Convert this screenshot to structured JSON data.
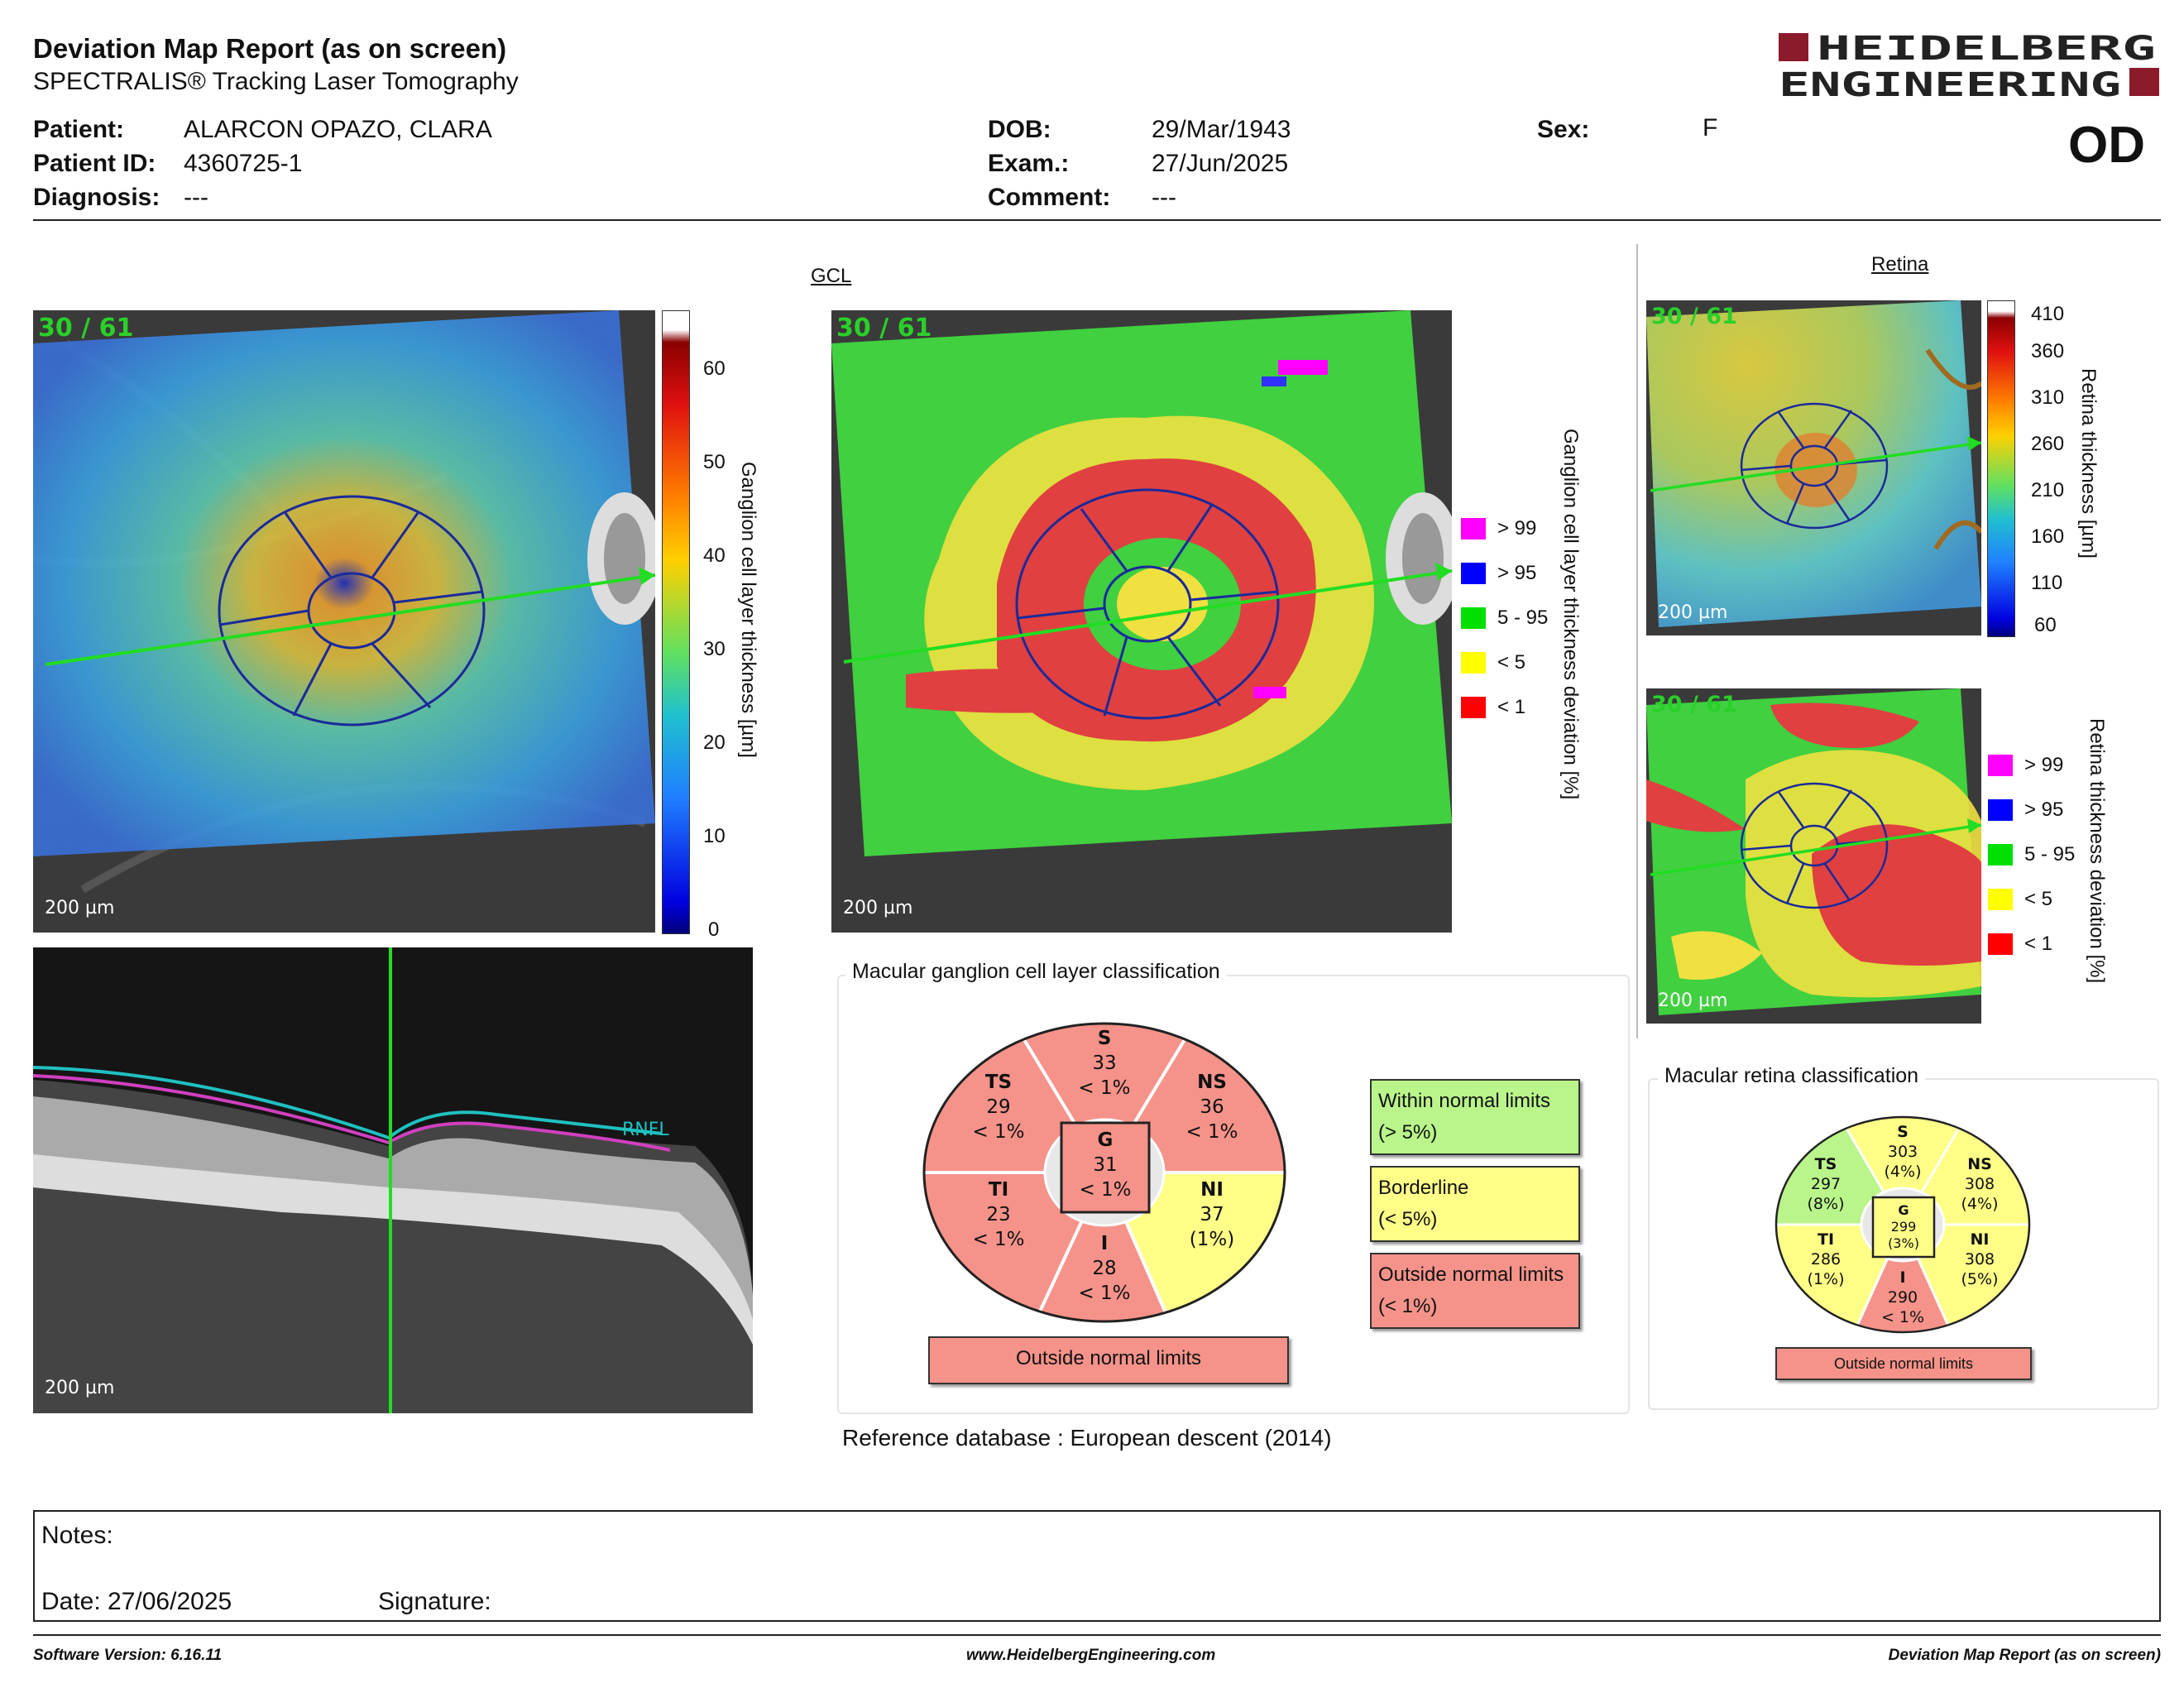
{
  "header": {
    "title": "Deviation Map Report (as on screen)",
    "subtitle": "SPECTRALIS® Tracking Laser Tomography",
    "logo_line1": "HEIDELBERG",
    "logo_line2": "ENGINEERING",
    "eye": "OD"
  },
  "patient": {
    "patient_label": "Patient:",
    "patient_value": "ALARCON OPAZO, CLARA",
    "id_label": "Patient ID:",
    "id_value": "4360725-1",
    "diagnosis_label": "Diagnosis:",
    "diagnosis_value": "---",
    "dob_label": "DOB:",
    "dob_value": "29/Mar/1943",
    "exam_label": "Exam.:",
    "exam_value": "27/Jun/2025",
    "comment_label": "Comment:",
    "comment_value": "---",
    "sex_label": "Sex:",
    "sex_value": "F"
  },
  "gcl": {
    "section_title": "GCL",
    "image_tag": "30 / 61",
    "scale_label": "200 µm",
    "thickness_bar_ticks": [
      "60",
      "50",
      "40",
      "30",
      "20",
      "10",
      "0"
    ],
    "thickness_axis_label": "Ganglion cell layer thickness [µm]",
    "deviation_axis_label": "Ganglion cell layer thickness deviation [%]",
    "legend": [
      {
        "label": "> 99",
        "color": "#ff00ff"
      },
      {
        "label": "> 95",
        "color": "#0000ff"
      },
      {
        "label": "5 - 95",
        "color": "#00e000"
      },
      {
        "label": "< 5",
        "color": "#ffff00"
      },
      {
        "label": "< 1",
        "color": "#ff0000"
      }
    ],
    "oct_scale_label": "200 µm",
    "oct_layer_label": "RNFL"
  },
  "gcl_classification": {
    "title": "Macular ganglion cell layer classification",
    "sectors": {
      "S": {
        "name": "S",
        "value": "33",
        "pct": "< 1%",
        "color": "#f5938a"
      },
      "TS": {
        "name": "TS",
        "value": "29",
        "pct": "< 1%",
        "color": "#f5938a"
      },
      "NS": {
        "name": "NS",
        "value": "36",
        "pct": "< 1%",
        "color": "#f5938a"
      },
      "TI": {
        "name": "TI",
        "value": "23",
        "pct": "< 1%",
        "color": "#f5938a"
      },
      "NI": {
        "name": "NI",
        "value": "37",
        "pct": "(1%)",
        "color": "#ffff88"
      },
      "I": {
        "name": "I",
        "value": "28",
        "pct": "< 1%",
        "color": "#f5938a"
      },
      "G": {
        "name": "G",
        "value": "31",
        "pct": "< 1%",
        "color": "#f5938a"
      }
    },
    "result": "Outside normal limits",
    "key": [
      {
        "line1": "Within normal limits",
        "line2": "(> 5%)",
        "color": "#b9f58a"
      },
      {
        "line1": "Borderline",
        "line2": "(< 5%)",
        "color": "#ffff88"
      },
      {
        "line1": "Outside normal limits",
        "line2": "(< 1%)",
        "color": "#f5938a"
      }
    ],
    "reference_label": "Reference database :",
    "reference_value": "European descent (2014)"
  },
  "retina": {
    "section_title": "Retina",
    "image_tag": "30 / 61",
    "scale_label": "200 µm",
    "thickness_bar_ticks": [
      "410",
      "360",
      "310",
      "260",
      "210",
      "160",
      "110",
      "60"
    ],
    "thickness_axis_label": "Retina thickness [µm]",
    "deviation_axis_label": "Retina thickness deviation [%]",
    "legend": [
      {
        "label": "> 99",
        "color": "#ff00ff"
      },
      {
        "label": "> 95",
        "color": "#0000ff"
      },
      {
        "label": "5 - 95",
        "color": "#00e000"
      },
      {
        "label": "< 5",
        "color": "#ffff00"
      },
      {
        "label": "< 1",
        "color": "#ff0000"
      }
    ]
  },
  "retina_classification": {
    "title": "Macular retina classification",
    "sectors": {
      "S": {
        "name": "S",
        "value": "303",
        "pct": "(4%)",
        "color": "#ffff88"
      },
      "TS": {
        "name": "TS",
        "value": "297",
        "pct": "(8%)",
        "color": "#b9f58a"
      },
      "NS": {
        "name": "NS",
        "value": "308",
        "pct": "(4%)",
        "color": "#ffff88"
      },
      "TI": {
        "name": "TI",
        "value": "286",
        "pct": "(1%)",
        "color": "#ffff88"
      },
      "NI": {
        "name": "NI",
        "value": "308",
        "pct": "(5%)",
        "color": "#ffff88"
      },
      "I": {
        "name": "I",
        "value": "290",
        "pct": "< 1%",
        "color": "#f5938a"
      },
      "G": {
        "name": "G",
        "value": "299",
        "pct": "(3%)",
        "color": "#ffff88"
      }
    },
    "result": "Outside normal limits"
  },
  "notes": {
    "notes_label": "Notes:",
    "date_label": "Date: 27/06/2025",
    "signature_label": "Signature:"
  },
  "footer": {
    "software": "Software Version: 6.16.11",
    "website": "www.HeidelbergEngineering.com",
    "report": "Deviation Map Report (as on screen)"
  }
}
